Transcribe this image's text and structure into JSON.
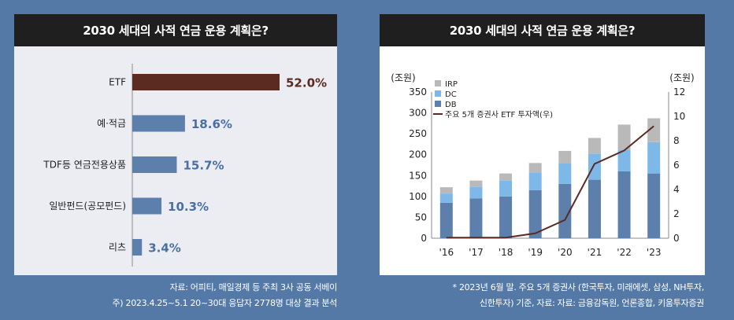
{
  "left_panel": {
    "title": "2030 세대의 사적 연금 운용 계획은?",
    "source_line1": "자료: 어피티, 매일경제 등 주최 3사 공동 서베이",
    "source_line2": "주) 2023.4.25~5.1 20~30대 응답자 2778명 대상 결과 분석"
  },
  "right_panel": {
    "title": "2030 세대의 사적 연금 운용 계획은?",
    "source_line1": "* 2023년 6월 말. 주요 5개 증권사 (한국투자, 미래에셋, 삼성, NH투자,",
    "source_line2": "신한투자) 기준, 자료: 자료: 금융감독원, 언론종합, 키움투자증권"
  },
  "colors": {
    "bar_top": "#5b2a20",
    "bar_rest": "#5d7fab",
    "label_rest": "#4a6fa5",
    "irp": "#b9b9b9",
    "dc": "#7eb8e8",
    "db": "#5d7fab",
    "etf_line": "#5b2a20"
  },
  "chart_data": [
    {
      "type": "bar",
      "orientation": "horizontal",
      "title": "2030 세대의 사적 연금 운용 계획은?",
      "categories": [
        "ETF",
        "예·적금",
        "TDF등 연금전용상품",
        "일반펀드(공모펀드)",
        "리츠"
      ],
      "values": [
        52.0,
        18.6,
        15.7,
        10.3,
        3.4
      ],
      "value_labels": [
        "52.0%",
        "18.6%",
        "15.7%",
        "10.3%",
        "3.4%"
      ],
      "xlim": [
        0,
        52
      ]
    },
    {
      "type": "bar",
      "stacked": true,
      "title": "2030 세대의 사적 연금 운용 계획은?",
      "categories": [
        "'16",
        "'17",
        "'18",
        "'19",
        "'20",
        "'21",
        "'22",
        "'23"
      ],
      "ylabel_left": "(조원)",
      "ylabel_right": "(조원)",
      "ylim_left": [
        0,
        350
      ],
      "yticks_left": [
        0,
        50,
        100,
        150,
        200,
        250,
        300,
        350
      ],
      "ylim_right": [
        0,
        12
      ],
      "yticks_right": [
        0,
        2,
        4,
        6,
        8,
        10,
        12
      ],
      "series": [
        {
          "name": "DB",
          "values": [
            85,
            95,
            100,
            115,
            130,
            140,
            160,
            155
          ]
        },
        {
          "name": "DC",
          "values": [
            22,
            28,
            38,
            42,
            50,
            62,
            52,
            75
          ]
        },
        {
          "name": "IRP",
          "values": [
            15,
            15,
            17,
            23,
            29,
            38,
            60,
            57
          ]
        }
      ],
      "line_series": {
        "name": "주요 5개 증권사 ETF 투자액(우)",
        "axis": "right",
        "values": [
          0.05,
          0.05,
          0.05,
          0.4,
          1.5,
          6.1,
          7.2,
          9.2
        ]
      },
      "legend": [
        "IRP",
        "DC",
        "DB",
        "주요 5개 증권사 ETF 투자액(우)"
      ],
      "legend_position": "top-left"
    }
  ]
}
